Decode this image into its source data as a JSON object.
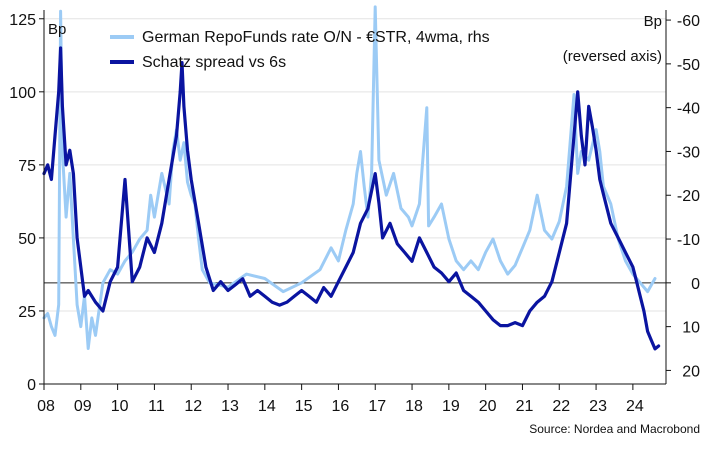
{
  "chart_data": {
    "type": "line",
    "title": "",
    "y_left_unit": "Bp",
    "y_right_unit": "Bp",
    "y_right_note": "(reversed axis)",
    "source": "Source: Nordea and Macrobond",
    "x_ticks": [
      "08",
      "09",
      "10",
      "11",
      "12",
      "13",
      "14",
      "15",
      "16",
      "17",
      "18",
      "19",
      "20",
      "21",
      "22",
      "23",
      "24"
    ],
    "x_range": [
      2008.0,
      2024.9
    ],
    "y_left_ticks": [
      0,
      25,
      50,
      75,
      100,
      125
    ],
    "y_left_range": [
      0,
      128
    ],
    "y_right_ticks": [
      20,
      10,
      0,
      -10,
      -20,
      -30,
      -40,
      -50,
      -60
    ],
    "y_right_range": [
      23.1,
      -62.3
    ],
    "y_right_reversed": true,
    "zero_line_right": 0,
    "grid": "horizontal",
    "legend_position": "top-left",
    "series": [
      {
        "name": "German RepoFunds rate O/N - €STR, 4wma, rhs",
        "axis": "right",
        "color": "#9ccbf5",
        "points": [
          [
            2008.0,
            8
          ],
          [
            2008.1,
            7
          ],
          [
            2008.2,
            10
          ],
          [
            2008.3,
            12
          ],
          [
            2008.4,
            5
          ],
          [
            2008.45,
            -62
          ],
          [
            2008.5,
            -30
          ],
          [
            2008.6,
            -15
          ],
          [
            2008.7,
            -25
          ],
          [
            2008.8,
            -10
          ],
          [
            2008.9,
            5
          ],
          [
            2009.0,
            10
          ],
          [
            2009.1,
            3
          ],
          [
            2009.2,
            15
          ],
          [
            2009.3,
            8
          ],
          [
            2009.4,
            12
          ],
          [
            2009.6,
            0
          ],
          [
            2009.8,
            -3
          ],
          [
            2010.0,
            -2
          ],
          [
            2010.2,
            -5
          ],
          [
            2010.4,
            -7
          ],
          [
            2010.6,
            -10
          ],
          [
            2010.8,
            -12
          ],
          [
            2010.9,
            -20
          ],
          [
            2011.0,
            -15
          ],
          [
            2011.2,
            -25
          ],
          [
            2011.4,
            -18
          ],
          [
            2011.5,
            -30
          ],
          [
            2011.6,
            -35
          ],
          [
            2011.7,
            -28
          ],
          [
            2011.8,
            -32
          ],
          [
            2011.9,
            -23
          ],
          [
            2012.0,
            -20
          ],
          [
            2012.1,
            -18
          ],
          [
            2012.2,
            -10
          ],
          [
            2012.3,
            -3
          ],
          [
            2012.5,
            0
          ],
          [
            2013.0,
            1
          ],
          [
            2013.5,
            -2
          ],
          [
            2014.0,
            -1
          ],
          [
            2014.5,
            2
          ],
          [
            2015.0,
            0
          ],
          [
            2015.5,
            -3
          ],
          [
            2015.8,
            -8
          ],
          [
            2016.0,
            -5
          ],
          [
            2016.2,
            -12
          ],
          [
            2016.4,
            -18
          ],
          [
            2016.5,
            -25
          ],
          [
            2016.6,
            -30
          ],
          [
            2016.7,
            -22
          ],
          [
            2016.8,
            -15
          ],
          [
            2016.9,
            -25
          ],
          [
            2017.0,
            -63
          ],
          [
            2017.1,
            -28
          ],
          [
            2017.3,
            -20
          ],
          [
            2017.5,
            -25
          ],
          [
            2017.7,
            -17
          ],
          [
            2017.9,
            -15
          ],
          [
            2018.0,
            -13
          ],
          [
            2018.2,
            -18
          ],
          [
            2018.4,
            -40
          ],
          [
            2018.45,
            -13
          ],
          [
            2018.6,
            -15
          ],
          [
            2018.8,
            -18
          ],
          [
            2019.0,
            -10
          ],
          [
            2019.2,
            -5
          ],
          [
            2019.4,
            -3
          ],
          [
            2019.6,
            -5
          ],
          [
            2019.8,
            -3
          ],
          [
            2020.0,
            -7
          ],
          [
            2020.2,
            -10
          ],
          [
            2020.4,
            -5
          ],
          [
            2020.6,
            -2
          ],
          [
            2020.8,
            -4
          ],
          [
            2021.0,
            -8
          ],
          [
            2021.2,
            -12
          ],
          [
            2021.4,
            -20
          ],
          [
            2021.6,
            -12
          ],
          [
            2021.8,
            -10
          ],
          [
            2022.0,
            -14
          ],
          [
            2022.2,
            -22
          ],
          [
            2022.4,
            -43
          ],
          [
            2022.5,
            -25
          ],
          [
            2022.6,
            -30
          ],
          [
            2022.8,
            -28
          ],
          [
            2023.0,
            -35
          ],
          [
            2023.1,
            -30
          ],
          [
            2023.2,
            -22
          ],
          [
            2023.4,
            -18
          ],
          [
            2023.6,
            -10
          ],
          [
            2023.8,
            -5
          ],
          [
            2024.0,
            -2
          ],
          [
            2024.2,
            0
          ],
          [
            2024.4,
            2
          ],
          [
            2024.6,
            -1
          ]
        ]
      },
      {
        "name": "Schatz spread vs 6s",
        "axis": "left",
        "color": "#0a14a0",
        "points": [
          [
            2008.0,
            72
          ],
          [
            2008.1,
            75
          ],
          [
            2008.2,
            70
          ],
          [
            2008.3,
            85
          ],
          [
            2008.4,
            100
          ],
          [
            2008.45,
            115
          ],
          [
            2008.5,
            95
          ],
          [
            2008.6,
            75
          ],
          [
            2008.7,
            80
          ],
          [
            2008.8,
            72
          ],
          [
            2008.9,
            50
          ],
          [
            2009.0,
            40
          ],
          [
            2009.1,
            30
          ],
          [
            2009.2,
            32
          ],
          [
            2009.4,
            28
          ],
          [
            2009.6,
            25
          ],
          [
            2009.8,
            35
          ],
          [
            2010.0,
            40
          ],
          [
            2010.2,
            70
          ],
          [
            2010.4,
            35
          ],
          [
            2010.6,
            40
          ],
          [
            2010.8,
            50
          ],
          [
            2011.0,
            45
          ],
          [
            2011.2,
            55
          ],
          [
            2011.4,
            70
          ],
          [
            2011.6,
            85
          ],
          [
            2011.7,
            100
          ],
          [
            2011.75,
            110
          ],
          [
            2011.8,
            95
          ],
          [
            2011.9,
            80
          ],
          [
            2012.0,
            70
          ],
          [
            2012.2,
            55
          ],
          [
            2012.4,
            40
          ],
          [
            2012.6,
            32
          ],
          [
            2012.8,
            35
          ],
          [
            2013.0,
            32
          ],
          [
            2013.2,
            34
          ],
          [
            2013.4,
            36
          ],
          [
            2013.6,
            30
          ],
          [
            2013.8,
            32
          ],
          [
            2014.0,
            30
          ],
          [
            2014.2,
            28
          ],
          [
            2014.4,
            27
          ],
          [
            2014.6,
            28
          ],
          [
            2014.8,
            30
          ],
          [
            2015.0,
            32
          ],
          [
            2015.2,
            30
          ],
          [
            2015.4,
            28
          ],
          [
            2015.6,
            33
          ],
          [
            2015.8,
            30
          ],
          [
            2016.0,
            35
          ],
          [
            2016.2,
            40
          ],
          [
            2016.4,
            45
          ],
          [
            2016.6,
            55
          ],
          [
            2016.8,
            60
          ],
          [
            2017.0,
            72
          ],
          [
            2017.1,
            62
          ],
          [
            2017.2,
            50
          ],
          [
            2017.4,
            55
          ],
          [
            2017.6,
            48
          ],
          [
            2017.8,
            45
          ],
          [
            2018.0,
            42
          ],
          [
            2018.2,
            50
          ],
          [
            2018.4,
            45
          ],
          [
            2018.6,
            40
          ],
          [
            2018.8,
            38
          ],
          [
            2019.0,
            35
          ],
          [
            2019.2,
            38
          ],
          [
            2019.4,
            32
          ],
          [
            2019.6,
            30
          ],
          [
            2019.8,
            28
          ],
          [
            2020.0,
            25
          ],
          [
            2020.2,
            22
          ],
          [
            2020.4,
            20
          ],
          [
            2020.6,
            20
          ],
          [
            2020.8,
            21
          ],
          [
            2021.0,
            20
          ],
          [
            2021.2,
            25
          ],
          [
            2021.4,
            28
          ],
          [
            2021.6,
            30
          ],
          [
            2021.8,
            35
          ],
          [
            2022.0,
            45
          ],
          [
            2022.2,
            55
          ],
          [
            2022.4,
            85
          ],
          [
            2022.5,
            100
          ],
          [
            2022.6,
            85
          ],
          [
            2022.7,
            75
          ],
          [
            2022.8,
            95
          ],
          [
            2022.9,
            88
          ],
          [
            2023.0,
            80
          ],
          [
            2023.1,
            70
          ],
          [
            2023.2,
            65
          ],
          [
            2023.4,
            55
          ],
          [
            2023.6,
            50
          ],
          [
            2023.8,
            45
          ],
          [
            2024.0,
            40
          ],
          [
            2024.1,
            35
          ],
          [
            2024.2,
            30
          ],
          [
            2024.3,
            25
          ],
          [
            2024.4,
            18
          ],
          [
            2024.5,
            15
          ],
          [
            2024.6,
            12
          ],
          [
            2024.7,
            13
          ]
        ]
      }
    ]
  }
}
